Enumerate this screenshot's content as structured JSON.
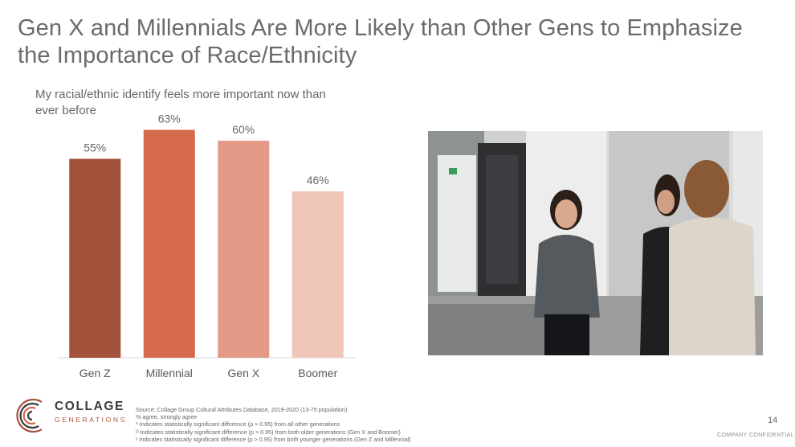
{
  "slide": {
    "title": "Gen X and Millennials Are More Likely than Other Gens to Emphasize the Importance of Race/Ethnicity",
    "subtitle": "My racial/ethnic identify feels more important now than ever before",
    "page_number": "14",
    "confidential": "COMPANY CONFIDENTIAL"
  },
  "chart_data": {
    "type": "bar",
    "categories": [
      "Gen Z",
      "Millennial",
      "Gen X",
      "Boomer"
    ],
    "values": [
      55,
      63,
      60,
      46
    ],
    "value_labels": [
      "55%",
      "63%",
      "60%",
      "46%"
    ],
    "colors": [
      "#a4523b",
      "#d4694c",
      "#e39b88",
      "#f0c6b9"
    ],
    "ylim": [
      0,
      70
    ],
    "grid": false,
    "title": "",
    "xlabel": "",
    "ylabel": ""
  },
  "photo": {
    "description_icon": "photo-of-three-women-talking"
  },
  "logo": {
    "name": "COLLAGE",
    "sub": "GENERATIONS"
  },
  "footnotes": [
    "Source: Collage Group Cultural Attributes Database, 2019-2020 (13-75 population)",
    "% agree, strongly agree",
    "* Indicates statistically significant difference (p > 0.95) from all other generations",
    "ᴼ Indicates statistically significant difference (p > 0.95) from both older generations (Gen X and Boomer)",
    "ʸ Indicates statistically significant difference (p > 0.95) from both younger generations (Gen Z and Millennial)"
  ]
}
